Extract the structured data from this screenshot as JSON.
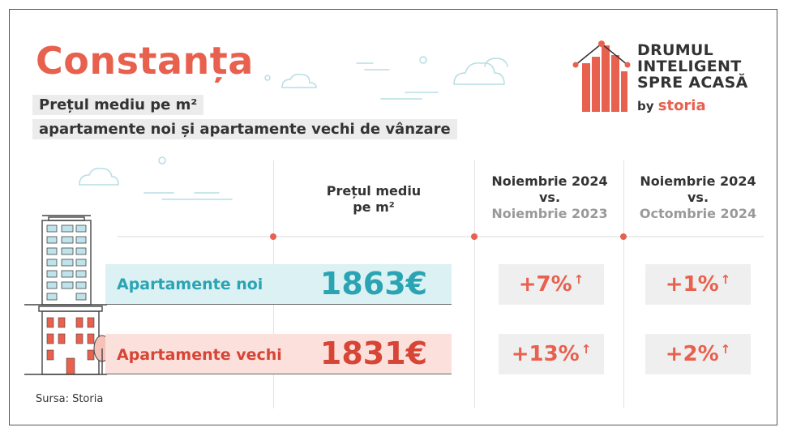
{
  "header": {
    "city": "Constanța",
    "subtitle_line1": "Prețul mediu pe m²",
    "subtitle_line2": "apartamente noi și apartamente vechi de vânzare"
  },
  "brand": {
    "line1": "DRUMUL",
    "line2": "INTELIGENT",
    "line3": "SPRE ACASĂ",
    "by": "by",
    "name": "storia"
  },
  "columns": {
    "price_line1": "Prețul mediu",
    "price_line2": "pe m²",
    "yoy_line1": "Noiembrie 2024",
    "yoy_line2": "vs.",
    "yoy_line3": "Noiembrie 2023",
    "mom_line1": "Noiembrie 2024",
    "mom_line2": "vs.",
    "mom_line3": "Octombrie 2024"
  },
  "rows": [
    {
      "label": "Apartamente noi",
      "price": "1863€",
      "yoy": "+7%",
      "mom": "+1%",
      "arrow": "↑"
    },
    {
      "label": "Apartamente vechi",
      "price": "1831€",
      "yoy": "+13%",
      "mom": "+2%",
      "arrow": "↑"
    }
  ],
  "source": "Sursa: Storia",
  "colors": {
    "accent": "#e8604e",
    "teal": "#2aa4b3",
    "red": "#d64535",
    "noi_band": "#dcf1f3",
    "vechi_band": "#fbe0dc"
  },
  "icons": [
    "cloud-icon",
    "tower-building-icon",
    "old-building-icon",
    "tree-icon",
    "bar-house-logo-icon"
  ]
}
